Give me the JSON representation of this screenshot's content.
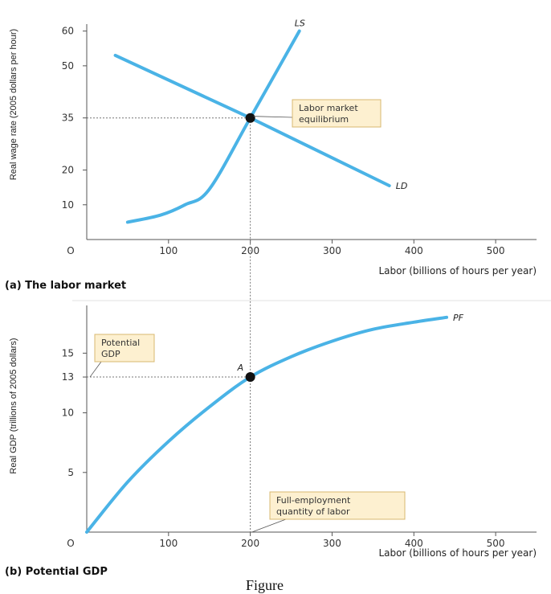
{
  "chart_data": [
    {
      "type": "line",
      "panel_title": "(a) The labor market",
      "xlabel": "Labor (billions of hours per year)",
      "ylabel": "Real wage rate (2005 dollars per hour)",
      "xlim": [
        0,
        550
      ],
      "ylim": [
        0,
        62
      ],
      "x_ticks": [
        0,
        100,
        200,
        300,
        400,
        500
      ],
      "x_tick_labels": [
        "O",
        "100",
        "200",
        "300",
        "400",
        "500"
      ],
      "y_ticks": [
        10,
        20,
        35,
        50,
        60
      ],
      "grid": false,
      "series": [
        {
          "name": "LS",
          "color": "#4ab3e6",
          "x": [
            50,
            90,
            120,
            150,
            200,
            260
          ],
          "y": [
            5,
            7,
            10,
            14.5,
            35,
            60
          ]
        },
        {
          "name": "LD",
          "color": "#4ab3e6",
          "x": [
            35,
            200,
            370
          ],
          "y": [
            53,
            35,
            15.5
          ]
        }
      ],
      "equilibrium": {
        "x": 200,
        "y": 35
      },
      "annotation": [
        "Labor market",
        "equilibrium"
      ]
    },
    {
      "type": "line",
      "panel_title": "(b) Potential GDP",
      "xlabel": "Labor (billions of hours per year)",
      "ylabel": "Real GDP (trillions of 2005 dollars)",
      "xlim": [
        0,
        550
      ],
      "ylim": [
        0,
        19
      ],
      "x_ticks": [
        0,
        100,
        200,
        300,
        400,
        500
      ],
      "x_tick_labels": [
        "O",
        "100",
        "200",
        "300",
        "400",
        "500"
      ],
      "y_ticks": [
        5,
        10,
        13,
        15
      ],
      "grid": false,
      "series": [
        {
          "name": "PF",
          "color": "#4ab3e6",
          "x": [
            0,
            50,
            100,
            150,
            200,
            250,
            300,
            350,
            400,
            440
          ],
          "y": [
            0,
            4.2,
            7.6,
            10.5,
            13.0,
            14.7,
            16.0,
            17.0,
            17.6,
            18.0
          ]
        }
      ],
      "point": {
        "label": "A",
        "x": 200,
        "y": 13
      },
      "annotations": [
        [
          "Potential",
          "GDP"
        ],
        [
          "Full-employment",
          "quantity of labor"
        ]
      ]
    }
  ],
  "caption": "Figure"
}
